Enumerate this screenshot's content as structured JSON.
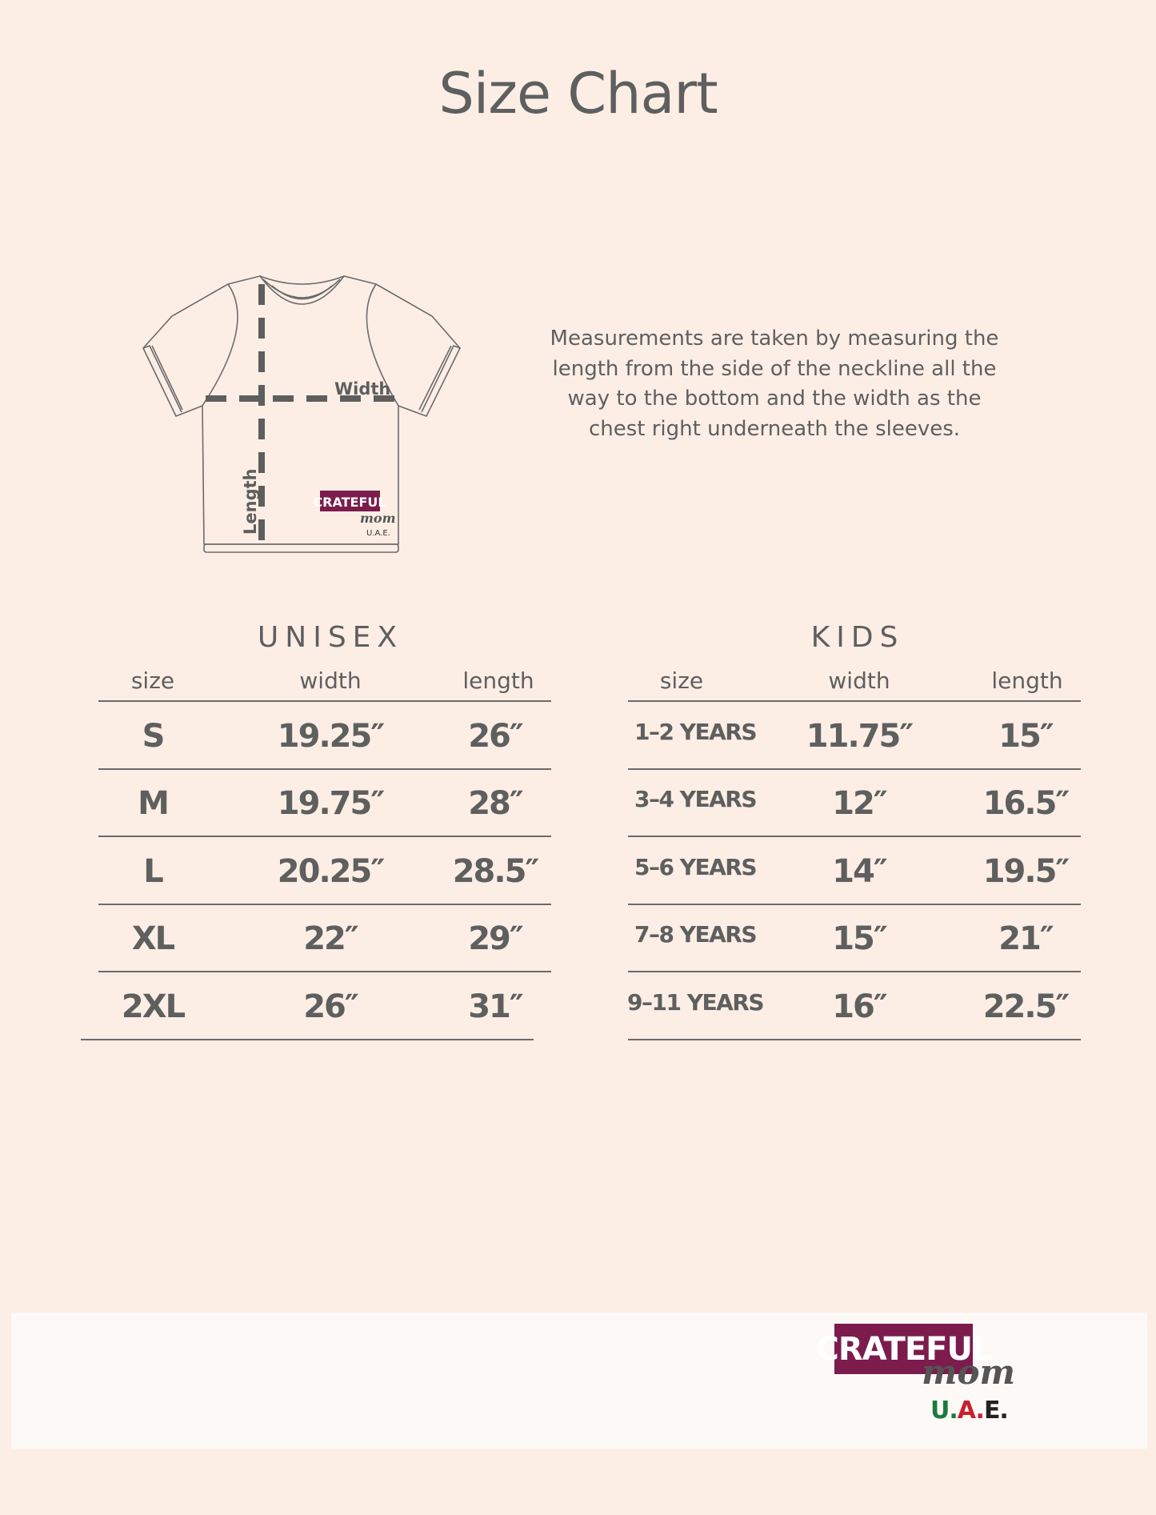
{
  "title": "Size Chart",
  "diagram": {
    "width_label": "Width",
    "length_label": "Length",
    "logo": {
      "line1": "CRATEFUL",
      "line2": "mom",
      "line3": "U.A.E."
    }
  },
  "description": [
    "Measurements are taken by measuring the",
    "length from the side of the neckline all the",
    "way to the bottom and the width as the",
    "chest right underneath the sleeves."
  ],
  "unisex": {
    "title": "UNISEX",
    "headers": [
      "size",
      "width",
      "length"
    ],
    "rows": [
      [
        "S",
        "19.25″",
        "26″"
      ],
      [
        "M",
        "19.75″",
        "28″"
      ],
      [
        "L",
        "20.25″",
        "28.5″"
      ],
      [
        "XL",
        "22″",
        "29″"
      ],
      [
        "2XL",
        "26″",
        "31″"
      ]
    ]
  },
  "kids": {
    "title": "KIDS",
    "headers": [
      "size",
      "width",
      "length"
    ],
    "rows": [
      [
        "1–2 YEARS",
        "11.75″",
        "15″"
      ],
      [
        "3–4 YEARS",
        "12″",
        "16.5″"
      ],
      [
        "5–6 YEARS",
        "14″",
        "19.5″"
      ],
      [
        "7–8 YEARS",
        "15″",
        "21″"
      ],
      [
        "9–11 YEARS",
        "16″",
        "22.5″"
      ]
    ]
  },
  "footer_logo": {
    "line1": "CRATEFUL",
    "line2": "mom",
    "line3_parts": [
      "U.",
      "A.",
      "E."
    ]
  },
  "colors": {
    "background": "#fdeee5",
    "text": "#5e5f5f",
    "brand": "#7b1c4d",
    "uae_green": "#1e7a3c",
    "uae_red": "#c8202f",
    "uae_black": "#222222"
  }
}
